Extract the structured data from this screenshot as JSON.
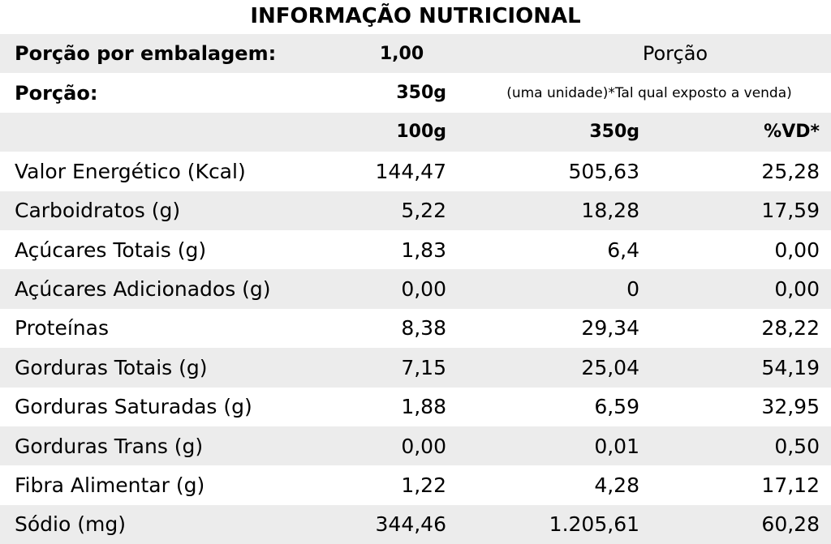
{
  "title": "INFORMAÇÃO NUTRICIONAL",
  "header": {
    "servings_label": "Porção por embalagem:",
    "servings_value": "1,00",
    "portion_word": "Porção",
    "portion_label": "Porção:",
    "portion_value": "350g",
    "portion_note": "(uma unidade)*Tal qual exposto a venda)"
  },
  "columns": {
    "per_100g": "100g",
    "per_350g": "350g",
    "vd": "%VD*"
  },
  "rows": [
    {
      "label": "Valor Energético (Kcal)",
      "v100": "144,47",
      "v350": "505,63",
      "vd": "25,28"
    },
    {
      "label": "Carboidratos (g)",
      "v100": "5,22",
      "v350": "18,28",
      "vd": "17,59"
    },
    {
      "label": "Açúcares Totais (g)",
      "v100": "1,83",
      "v350": "6,4",
      "vd": "0,00"
    },
    {
      "label": "Açúcares Adicionados (g)",
      "v100": "0,00",
      "v350": "0",
      "vd": "0,00"
    },
    {
      "label": "Proteínas",
      "v100": "8,38",
      "v350": "29,34",
      "vd": "28,22"
    },
    {
      "label": "Gorduras Totais (g)",
      "v100": "7,15",
      "v350": "25,04",
      "vd": "54,19"
    },
    {
      "label": "Gorduras Saturadas (g)",
      "v100": "1,88",
      "v350": "6,59",
      "vd": "32,95"
    },
    {
      "label": "Gorduras Trans (g)",
      "v100": "0,00",
      "v350": "0,01",
      "vd": "0,50"
    },
    {
      "label": "Fibra Alimentar (g)",
      "v100": "1,22",
      "v350": "4,28",
      "vd": "17,12"
    },
    {
      "label": "Sódio (mg)",
      "v100": "344,46",
      "v350": "1.205,61",
      "vd": "60,28"
    }
  ]
}
